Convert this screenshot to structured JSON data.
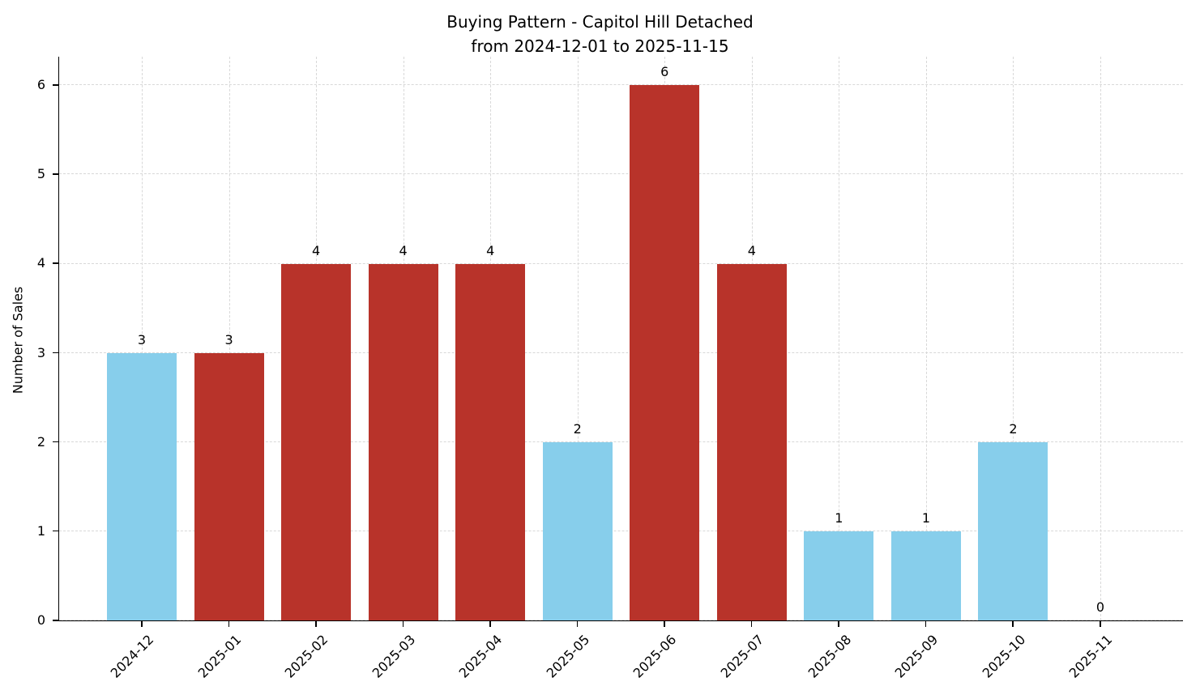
{
  "chart_data": {
    "type": "bar",
    "title": "Buying Pattern - Capitol Hill Detached",
    "subtitle": "from 2024-12-01 to 2025-11-15",
    "xlabel": "",
    "ylabel": "Number of Sales",
    "categories": [
      "2024-12",
      "2025-01",
      "2025-02",
      "2025-03",
      "2025-04",
      "2025-05",
      "2025-06",
      "2025-07",
      "2025-08",
      "2025-09",
      "2025-10",
      "2025-11"
    ],
    "values": [
      3,
      3,
      4,
      4,
      4,
      2,
      6,
      4,
      1,
      1,
      2,
      0
    ],
    "value_labels": [
      "3",
      "3",
      "4",
      "4",
      "4",
      "2",
      "6",
      "4",
      "1",
      "1",
      "2",
      "0"
    ],
    "bar_colors": [
      "#87CEEB",
      "#B8332A",
      "#B8332A",
      "#B8332A",
      "#B8332A",
      "#87CEEB",
      "#B8332A",
      "#B8332A",
      "#87CEEB",
      "#87CEEB",
      "#87CEEB",
      "#87CEEB"
    ],
    "y_ticks": [
      0,
      1,
      2,
      3,
      4,
      5,
      6
    ],
    "ylim": [
      0,
      6.32
    ],
    "grid": "dashed",
    "legend": "none"
  },
  "colors": {
    "bar_blue": "#87CEEB",
    "bar_red": "#B8332A",
    "grid": "#d8d8d8",
    "axis": "#000000",
    "background": "#ffffff",
    "text": "#000000"
  }
}
